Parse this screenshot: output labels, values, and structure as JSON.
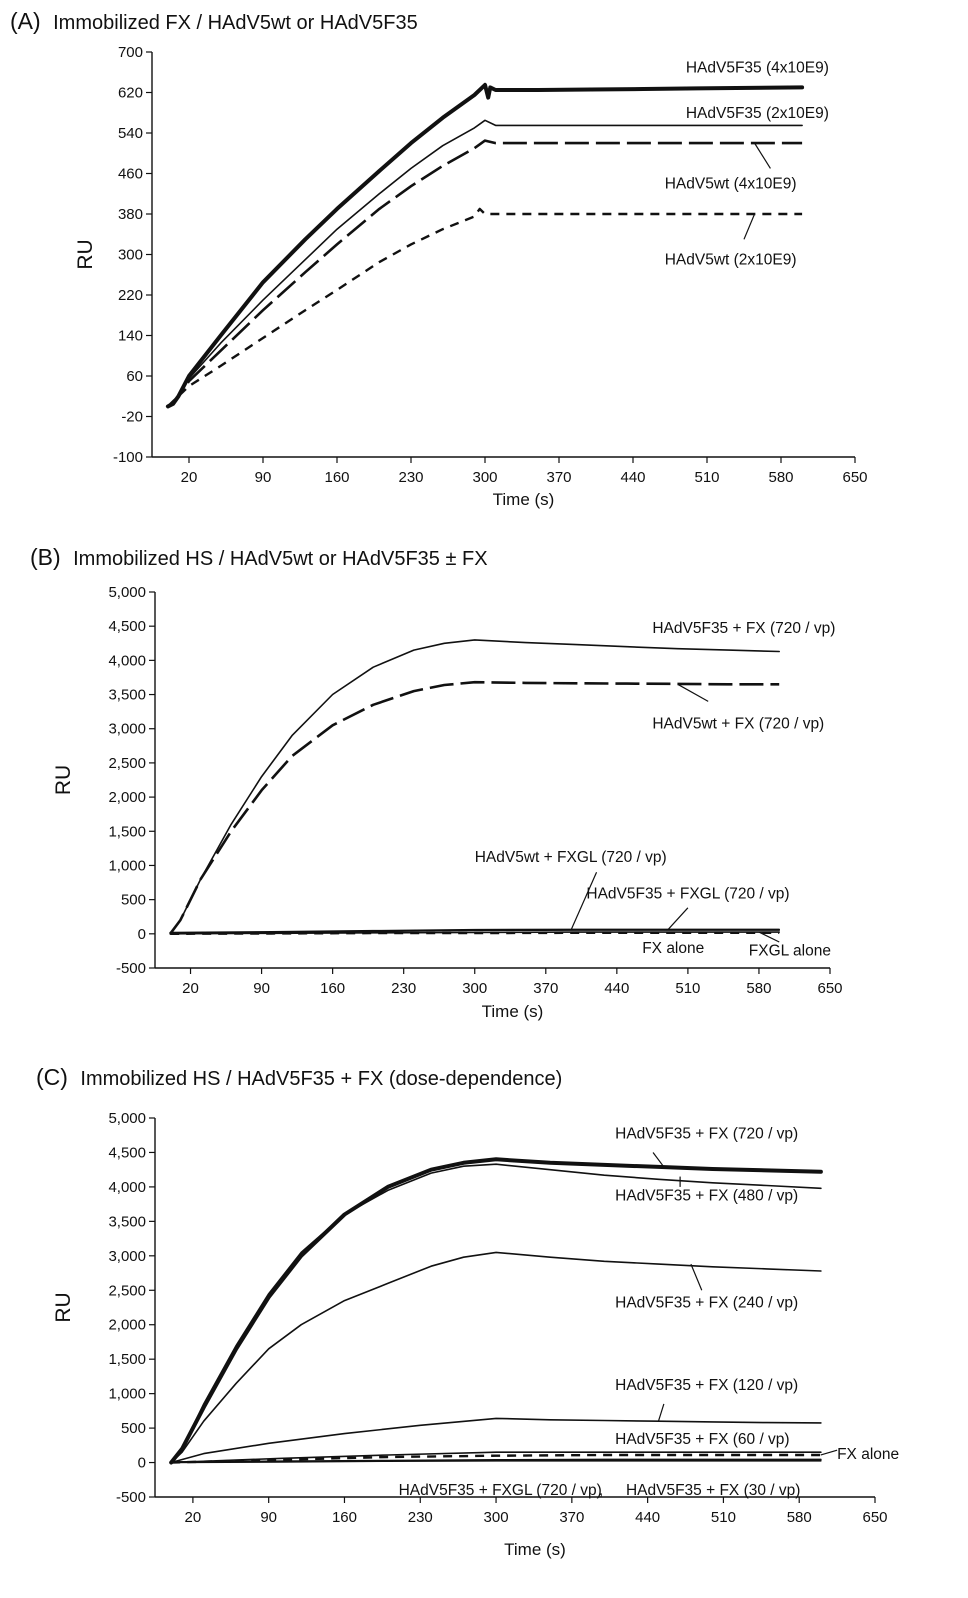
{
  "panels": [
    {
      "letter": "(A)",
      "title": "Immobilized FX / HAdV5wt or HAdV5F35",
      "chart_data": {
        "type": "line",
        "xlabel": "Time (s)",
        "ylabel": "RU",
        "xlim": [
          -15,
          650
        ],
        "ylim": [
          -100,
          700
        ],
        "xticks": [
          20,
          90,
          160,
          230,
          300,
          370,
          440,
          510,
          580,
          650
        ],
        "yticks": [
          -100,
          -20,
          60,
          140,
          220,
          300,
          380,
          460,
          540,
          620,
          700
        ],
        "grid": false,
        "series": [
          {
            "name": "HAdV5F35 (4x10E9)",
            "style": "thick",
            "label_x": 490,
            "label_y": 660,
            "x": [
              0,
              5,
              10,
              20,
              50,
              90,
              130,
              160,
              200,
              230,
              260,
              290,
              300,
              303,
              305,
              310,
              350,
              400,
              450,
              500,
              550,
              600
            ],
            "y": [
              0,
              5,
              20,
              60,
              140,
              245,
              330,
              390,
              465,
              520,
              570,
              615,
              635,
              610,
              630,
              625,
              625,
              626,
              627,
              628,
              629,
              630
            ]
          },
          {
            "name": "HAdV5F35 (2x10E9)",
            "style": "thin",
            "label_x": 490,
            "label_y": 570,
            "x": [
              0,
              10,
              20,
              50,
              90,
              130,
              160,
              200,
              230,
              260,
              290,
              300,
              310,
              350,
              400,
              450,
              500,
              550,
              600
            ],
            "y": [
              0,
              20,
              55,
              125,
              210,
              290,
              350,
              420,
              470,
              515,
              550,
              565,
              555,
              555,
              555,
              555,
              555,
              555,
              555
            ]
          },
          {
            "name": "HAdV5wt (4x10E9)",
            "style": "dashed-long",
            "label_x": 470,
            "label_y": 430,
            "x": [
              0,
              10,
              20,
              50,
              90,
              130,
              160,
              200,
              230,
              260,
              290,
              300,
              310,
              350,
              400,
              450,
              500,
              550,
              600
            ],
            "y": [
              0,
              20,
              50,
              110,
              190,
              265,
              320,
              390,
              435,
              475,
              510,
              525,
              520,
              520,
              520,
              520,
              520,
              520,
              520
            ]
          },
          {
            "name": "HAdV5wt (2x10E9)",
            "style": "dashed-short",
            "label_x": 470,
            "label_y": 280,
            "x": [
              0,
              10,
              20,
              50,
              90,
              130,
              160,
              200,
              230,
              260,
              290,
              295,
              300,
              310,
              350,
              400,
              450,
              500,
              550,
              600
            ],
            "y": [
              0,
              20,
              40,
              80,
              135,
              190,
              230,
              285,
              320,
              350,
              375,
              390,
              380,
              380,
              380,
              380,
              380,
              380,
              380,
              380
            ]
          }
        ],
        "leaders": [
          {
            "series": 2,
            "x1": 555,
            "y1": 520,
            "x2": 570,
            "y2": 470
          },
          {
            "series": 3,
            "x1": 555,
            "y1": 380,
            "x2": 545,
            "y2": 330
          }
        ]
      }
    },
    {
      "letter": "(B)",
      "title": "Immobilized HS / HAdV5wt or HAdV5F35 ± FX",
      "chart_data": {
        "type": "line",
        "xlabel": "Time (s)",
        "ylabel": "RU",
        "xlim": [
          -15,
          650
        ],
        "ylim": [
          -500,
          5000
        ],
        "xticks": [
          20,
          90,
          160,
          230,
          300,
          370,
          440,
          510,
          580,
          650
        ],
        "yticks": [
          -500,
          0,
          500,
          1000,
          1500,
          2000,
          2500,
          3000,
          3500,
          4000,
          4500,
          5000
        ],
        "ytick_labels": [
          "-500",
          "0",
          "500",
          "1,000",
          "1,500",
          "2,000",
          "2,500",
          "3,000",
          "3,500",
          "4,000",
          "4,500",
          "5,000"
        ],
        "grid": false,
        "series": [
          {
            "name": "HAdV5F35 + FX (720 / vp)",
            "style": "thin",
            "label_x": 475,
            "label_y": 4400,
            "x": [
              0,
              10,
              30,
              60,
              90,
              120,
              160,
              200,
              240,
              270,
              300,
              350,
              400,
              450,
              500,
              550,
              600
            ],
            "y": [
              0,
              200,
              800,
              1600,
              2300,
              2900,
              3500,
              3900,
              4150,
              4250,
              4300,
              4260,
              4230,
              4200,
              4170,
              4150,
              4130
            ]
          },
          {
            "name": "HAdV5wt + FX (720 / vp)",
            "style": "dashed-long",
            "label_x": 475,
            "label_y": 3000,
            "x": [
              0,
              10,
              30,
              60,
              90,
              120,
              160,
              200,
              240,
              270,
              300,
              350,
              400,
              450,
              500,
              550,
              600
            ],
            "y": [
              0,
              200,
              800,
              1500,
              2100,
              2600,
              3050,
              3350,
              3550,
              3640,
              3680,
              3670,
              3665,
              3660,
              3655,
              3650,
              3650
            ]
          },
          {
            "name": "HAdV5wt + FXGL (720 / vp)",
            "style": "thin",
            "label_x": 300,
            "label_y": 1050,
            "x": [
              0,
              100,
              200,
              300,
              400,
              500,
              600
            ],
            "y": [
              20,
              30,
              45,
              60,
              65,
              65,
              65
            ]
          },
          {
            "name": "HAdV5F35 + FXGL (720 / vp)",
            "style": "thin",
            "label_x": 410,
            "label_y": 520,
            "x": [
              0,
              100,
              200,
              300,
              400,
              500,
              600
            ],
            "y": [
              10,
              20,
              35,
              50,
              55,
              55,
              55
            ]
          },
          {
            "name": "FX alone",
            "style": "dashed-short",
            "label_x": 465,
            "label_y": -280,
            "x": [
              0,
              100,
              200,
              300,
              400,
              500,
              600
            ],
            "y": [
              0,
              5,
              10,
              10,
              15,
              15,
              15
            ]
          },
          {
            "name": "FXGL alone",
            "style": "thin",
            "label_x": 570,
            "label_y": -320,
            "x": [
              0,
              100,
              200,
              300,
              400,
              500,
              600
            ],
            "y": [
              0,
              8,
              15,
              20,
              25,
              25,
              25
            ]
          }
        ],
        "leaders": [
          {
            "series": 1,
            "x1": 500,
            "y1": 3650,
            "x2": 530,
            "y2": 3400
          },
          {
            "series": 2,
            "x1": 395,
            "y1": 60,
            "x2": 420,
            "y2": 900
          },
          {
            "series": 3,
            "x1": 490,
            "y1": 55,
            "x2": 510,
            "y2": 380
          },
          {
            "series": 5,
            "x1": 580,
            "y1": 25,
            "x2": 600,
            "y2": -120
          }
        ]
      }
    },
    {
      "letter": "(C)",
      "title": "Immobilized HS / HAdV5F35 + FX  (dose-dependence)",
      "chart_data": {
        "type": "line",
        "xlabel": "Time (s)",
        "ylabel": "RU",
        "xlim": [
          -15,
          650
        ],
        "ylim": [
          -500,
          5000
        ],
        "xticks": [
          20,
          90,
          160,
          230,
          300,
          370,
          440,
          510,
          580,
          650
        ],
        "yticks": [
          -500,
          0,
          500,
          1000,
          1500,
          2000,
          2500,
          3000,
          3500,
          4000,
          4500,
          5000
        ],
        "ytick_labels": [
          "-500",
          "0",
          "500",
          "1,000",
          "1,500",
          "2,000",
          "2,500",
          "3,000",
          "3,500",
          "4,000",
          "4,500",
          "5,000"
        ],
        "grid": false,
        "series": [
          {
            "name": "HAdV5F35 + FX (720 / vp)",
            "style": "thick",
            "label_x": 410,
            "label_y": 4700,
            "x": [
              0,
              10,
              30,
              60,
              90,
              120,
              160,
              200,
              240,
              270,
              300,
              350,
              400,
              450,
              500,
              550,
              600
            ],
            "y": [
              0,
              200,
              800,
              1650,
              2400,
              3000,
              3600,
              4000,
              4250,
              4350,
              4400,
              4350,
              4320,
              4290,
              4260,
              4240,
              4220
            ]
          },
          {
            "name": "HAdV5F35 + FX (480 / vp)",
            "style": "thin",
            "label_x": 410,
            "label_y": 3800,
            "x": [
              0,
              10,
              30,
              60,
              90,
              120,
              160,
              200,
              240,
              270,
              300,
              350,
              400,
              450,
              500,
              550,
              600
            ],
            "y": [
              0,
              200,
              850,
              1700,
              2450,
              3050,
              3600,
              3950,
              4200,
              4300,
              4330,
              4250,
              4170,
              4110,
              4060,
              4020,
              3980
            ]
          },
          {
            "name": "HAdV5F35 + FX (240 / vp)",
            "style": "thin",
            "label_x": 410,
            "label_y": 2250,
            "x": [
              0,
              10,
              30,
              60,
              90,
              120,
              160,
              200,
              240,
              270,
              300,
              350,
              400,
              450,
              500,
              550,
              600
            ],
            "y": [
              0,
              150,
              600,
              1150,
              1650,
              2000,
              2350,
              2600,
              2850,
              2980,
              3050,
              2980,
              2920,
              2880,
              2840,
              2810,
              2780
            ]
          },
          {
            "name": "HAdV5F35 + FX (120 / vp)",
            "style": "thin",
            "label_x": 410,
            "label_y": 1050,
            "x": [
              0,
              30,
              90,
              160,
              230,
              300,
              350,
              400,
              450,
              500,
              550,
              600
            ],
            "y": [
              0,
              130,
              280,
              420,
              540,
              640,
              620,
              610,
              600,
              590,
              580,
              575
            ]
          },
          {
            "name": "HAdV5F35 + FX (60 / vp)",
            "style": "thin",
            "label_x": 410,
            "label_y": 270,
            "x": [
              0,
              100,
              200,
              300,
              400,
              500,
              600
            ],
            "y": [
              0,
              60,
              110,
              150,
              150,
              150,
              150
            ]
          },
          {
            "name": "FX alone",
            "style": "dashed-short",
            "label_x": 615,
            "label_y": 50,
            "x": [
              0,
              100,
              200,
              300,
              400,
              500,
              600
            ],
            "y": [
              0,
              40,
              80,
              100,
              110,
              110,
              110
            ]
          },
          {
            "name": "HAdV5F35 + FXGL (720 / vp)",
            "style": "thin",
            "label_x": 210,
            "label_y": -470,
            "x": [
              0,
              100,
              200,
              300,
              400,
              500,
              600
            ],
            "y": [
              10,
              20,
              30,
              40,
              45,
              45,
              45
            ]
          },
          {
            "name": "HAdV5F35 + FX (30 / vp)",
            "style": "thin",
            "label_x": 420,
            "label_y": -470,
            "x": [
              0,
              100,
              200,
              300,
              400,
              500,
              600
            ],
            "y": [
              0,
              10,
              20,
              25,
              25,
              25,
              25
            ]
          }
        ],
        "separators": [
          {
            "text": ",",
            "x": 395,
            "y": -470
          }
        ],
        "leaders": [
          {
            "series": 0,
            "x1": 455,
            "y1": 4290,
            "x2": 445,
            "y2": 4500
          },
          {
            "series": 1,
            "x1": 470,
            "y1": 4150,
            "x2": 470,
            "y2": 4000
          },
          {
            "series": 2,
            "x1": 480,
            "y1": 2880,
            "x2": 490,
            "y2": 2500
          },
          {
            "series": 3,
            "x1": 450,
            "y1": 600,
            "x2": 455,
            "y2": 850
          },
          {
            "series": 5,
            "x1": 600,
            "y1": 110,
            "x2": 615,
            "y2": 180
          }
        ]
      }
    }
  ]
}
